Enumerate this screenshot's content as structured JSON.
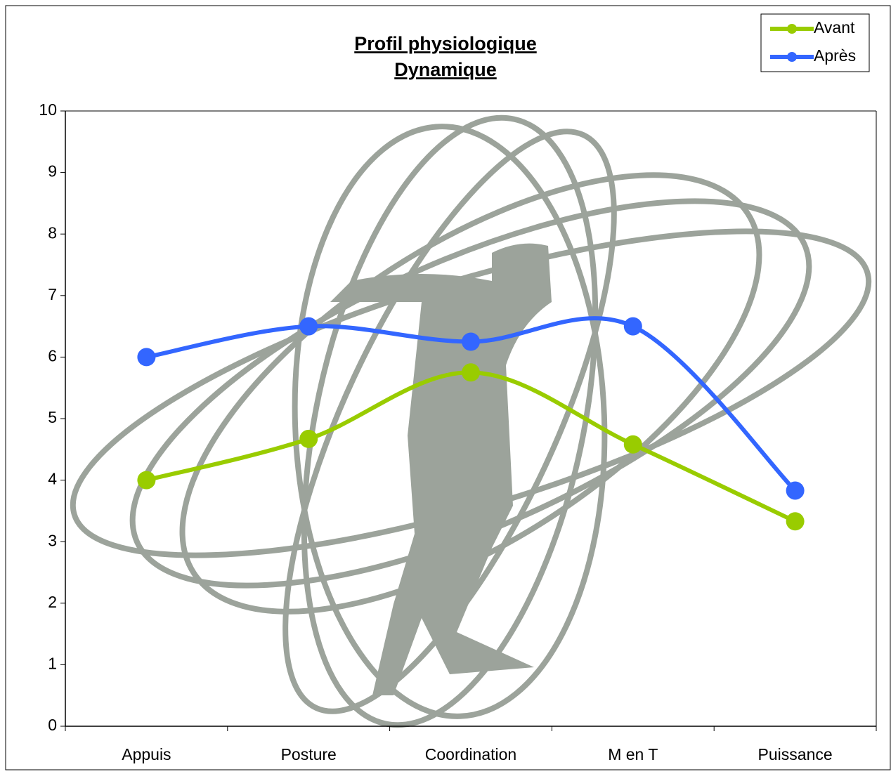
{
  "chart_data": {
    "type": "line",
    "title": "Profil physiologique",
    "subtitle": "Dynamique",
    "categories": [
      "Appuis",
      "Posture",
      "Coordination",
      "M en T",
      "Puissance"
    ],
    "series": [
      {
        "name": "Avant",
        "color": "#99cc00",
        "values": [
          4,
          4.67,
          5.75,
          4.58,
          3.33
        ]
      },
      {
        "name": "Après",
        "color": "#3366ff",
        "values": [
          6,
          6.5,
          6.25,
          6.5,
          3.83
        ]
      }
    ],
    "ylim": [
      0,
      10
    ],
    "yticks": [
      0,
      1,
      2,
      3,
      4,
      5,
      6,
      7,
      8,
      9,
      10
    ],
    "smooth": true,
    "legend": "top-right"
  }
}
